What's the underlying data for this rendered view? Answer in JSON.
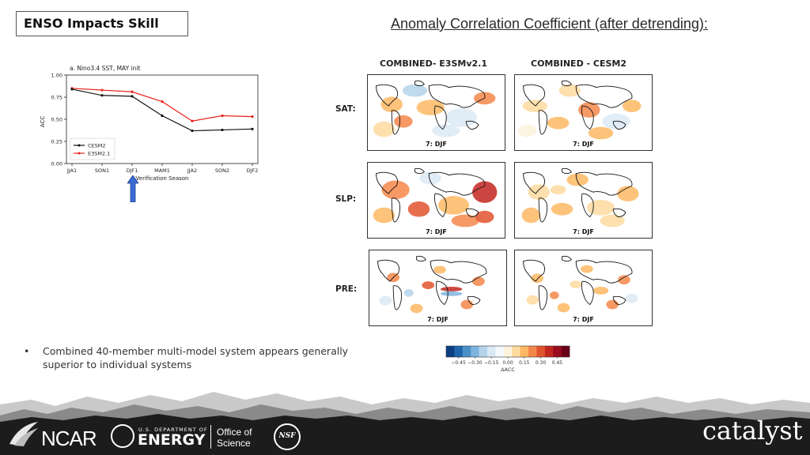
{
  "slide": {
    "title": "ENSO Impacts Skill",
    "heading": "Anomaly Correlation Coefficient (after detrending):"
  },
  "maps": {
    "columns": [
      "COMBINED- E3SMv2.1",
      "COMBINED - CESM2"
    ],
    "rows": [
      "SAT:",
      "SLP:",
      "PRE:"
    ],
    "panel_tag": "7: DJF"
  },
  "chart_data": {
    "type": "line",
    "title": "a. Nino3.4 SST, MAY init",
    "xlabel": "Verification Season",
    "ylabel": "ACC",
    "categories": [
      "JJA1",
      "SON1",
      "DJF1",
      "MAM1",
      "JJA2",
      "SON2",
      "DJF2"
    ],
    "ylim": [
      0,
      1
    ],
    "yticks": [
      "0.00",
      "0.25",
      "0.50",
      "0.75",
      "1.00"
    ],
    "legend_position": "lower-left",
    "grid": false,
    "series": [
      {
        "name": "CESM2",
        "color": "#111111",
        "values": [
          0.84,
          0.77,
          0.76,
          0.54,
          0.37,
          0.38,
          0.39
        ]
      },
      {
        "name": "E3SM2.1",
        "color": "#e8211c",
        "values": [
          0.85,
          0.83,
          0.81,
          0.7,
          0.48,
          0.54,
          0.53
        ]
      }
    ]
  },
  "colorbar": {
    "ticks": [
      "−0.45",
      "−0.30",
      "−0.15",
      "0.00",
      "0.15",
      "0.30",
      "0.45"
    ],
    "label": "ΔACC",
    "colors": [
      "#0b3f82",
      "#2166ac",
      "#4a90c8",
      "#7db4dd",
      "#b5d3ea",
      "#dbe9f4",
      "#f5f8fb",
      "#fdf2dc",
      "#fddba0",
      "#fdb863",
      "#f4874a",
      "#e0532f",
      "#c2261f",
      "#9a0b1e",
      "#6b0019"
    ]
  },
  "bullet": {
    "marker": "•",
    "text": "Combined 40-member multi-model system appears generally superior to individual systems"
  },
  "footer": {
    "ncar": "NCAR",
    "doe_small": "U.S. DEPARTMENT OF",
    "doe_big": "ENERGY",
    "office_line1": "Office of",
    "office_line2": "Science",
    "nsf": "NSF",
    "catalyst": "catalyst"
  },
  "arrow_color": "#3b6bd4"
}
